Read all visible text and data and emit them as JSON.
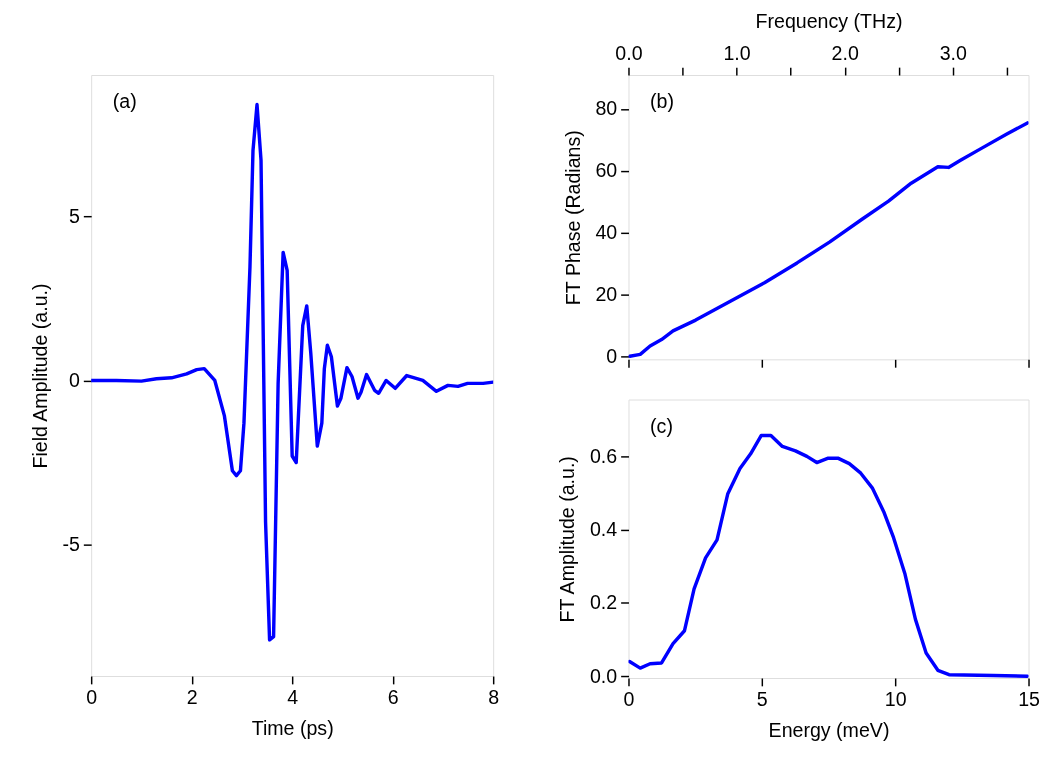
{
  "chart_data": [
    {
      "type": "line",
      "xlabel": "Time (ps)",
      "ylabel": "Field Amplitude (a.u.)",
      "annotations": [
        "(a)"
      ],
      "x": [
        0,
        0.5,
        1.0,
        1.3,
        1.6,
        1.9,
        2.1,
        2.25,
        2.46,
        2.65,
        2.81,
        2.89,
        2.97,
        3.04,
        3.16,
        3.22,
        3.3,
        3.38,
        3.47,
        3.55,
        3.63,
        3.72,
        3.82,
        3.9,
        4.0,
        4.08,
        4.21,
        4.29,
        4.37,
        4.5,
        4.59,
        4.64,
        4.7,
        4.78,
        4.9,
        4.97,
        5.09,
        5.19,
        5.31,
        5.37,
        5.48,
        5.64,
        5.72,
        5.87,
        6.05,
        6.28,
        6.6,
        6.87,
        7.1,
        7.3,
        7.49,
        7.8,
        8.0
      ],
      "series": [
        {
          "color": "#0000ff",
          "values": [
            0,
            0,
            -0.02,
            0.05,
            0.08,
            0.2,
            0.33,
            0.36,
            0,
            -1.07,
            -2.75,
            -2.9,
            -2.75,
            -1.3,
            3.46,
            7.0,
            8.4,
            6.7,
            -4.3,
            -7.9,
            -7.8,
            -0.1,
            3.9,
            3.35,
            -2.3,
            -2.5,
            1.67,
            2.27,
            0.83,
            -2.0,
            -1.3,
            0.36,
            1.07,
            0.72,
            -0.78,
            -0.54,
            0.39,
            0.12,
            -0.54,
            -0.36,
            0.18,
            -0.3,
            -0.39,
            0,
            -0.24,
            0.15,
            0,
            -0.33,
            -0.15,
            -0.18,
            -0.09,
            -0.09,
            -0.05
          ]
        }
      ],
      "xlim": [
        0,
        8
      ],
      "xticks": [
        0,
        2,
        4,
        6,
        8
      ],
      "ylim": [
        -9.0,
        9.3
      ],
      "yticks": [
        -5,
        0,
        5
      ],
      "line_style": "solid",
      "marker": "none"
    },
    {
      "type": "line",
      "ylabel": "FT Phase (Radians)",
      "x2label": "Frequency (THz)",
      "annotations": [
        "(b)"
      ],
      "tick_labels": "y",
      "x": [
        0.05,
        0.44,
        0.81,
        1.24,
        1.67,
        2.52,
        3.75,
        5.1,
        6.32,
        7.55,
        8.77,
        9.75,
        10.6,
        11.6,
        12.0,
        12.45,
        13.2,
        14.17,
        14.96
      ],
      "series": [
        {
          "color": "#0000ff",
          "values": [
            0,
            0.6,
            3.3,
            5.4,
            8.2,
            11.7,
            17.5,
            23.8,
            30.2,
            37,
            44.4,
            50.2,
            56,
            61.3,
            61.1,
            63.4,
            67.1,
            71.8,
            75.5
          ]
        }
      ],
      "xlim": [
        0,
        15
      ],
      "xticks": [
        {
          "value": 0,
          "label": null
        },
        {
          "value": 5,
          "label": null
        },
        {
          "value": 10,
          "label": null
        },
        {
          "value": 15,
          "label": null
        }
      ],
      "x2lim": [
        0,
        3.7
      ],
      "x2ticks": [
        {
          "value": 0,
          "label": "0.0"
        },
        {
          "value": 0.5,
          "label": null
        },
        {
          "value": 1,
          "label": "1.0"
        },
        {
          "value": 1.5,
          "label": null
        },
        {
          "value": 2,
          "label": "2.0"
        },
        {
          "value": 2.5,
          "label": null
        },
        {
          "value": 3,
          "label": "3.0"
        },
        {
          "value": 3.5,
          "label": null
        }
      ],
      "ylim": [
        -1,
        91
      ],
      "yticks": [
        0,
        20,
        40,
        60,
        80
      ],
      "line_style": "solid",
      "marker": "none"
    },
    {
      "type": "line",
      "xlabel": "Energy (meV)",
      "ylabel": "FT Amplitude (a.u.)",
      "annotations": [
        "(c)"
      ],
      "x": [
        0.04,
        0.44,
        0.81,
        1.24,
        1.67,
        2.1,
        2.46,
        2.89,
        3.32,
        3.72,
        4.18,
        4.58,
        4.98,
        5.34,
        5.77,
        6.26,
        6.69,
        7.06,
        7.49,
        7.85,
        8.28,
        8.71,
        9.14,
        9.57,
        9.94,
        10.37,
        10.76,
        11.16,
        11.6,
        12.02,
        13.68,
        14.96
      ],
      "series": [
        {
          "color": "#0000ff",
          "values": [
            0.04,
            0.022,
            0.034,
            0.036,
            0.089,
            0.124,
            0.238,
            0.323,
            0.372,
            0.497,
            0.567,
            0.607,
            0.657,
            0.657,
            0.627,
            0.615,
            0.6,
            0.583,
            0.595,
            0.595,
            0.58,
            0.554,
            0.514,
            0.449,
            0.378,
            0.278,
            0.155,
            0.063,
            0.016,
            0.004,
            0.002,
            0.0
          ]
        }
      ],
      "xlim": [
        0,
        15
      ],
      "xticks": [
        0,
        5,
        10,
        15
      ],
      "ylim": [
        -0.005,
        0.755
      ],
      "yticks": [
        {
          "value": 0,
          "label": "0.0"
        },
        {
          "value": 0.2,
          "label": "0.2"
        },
        {
          "value": 0.4,
          "label": "0.4"
        },
        {
          "value": 0.6,
          "label": "0.6"
        }
      ],
      "line_style": "solid",
      "marker": "none"
    }
  ]
}
